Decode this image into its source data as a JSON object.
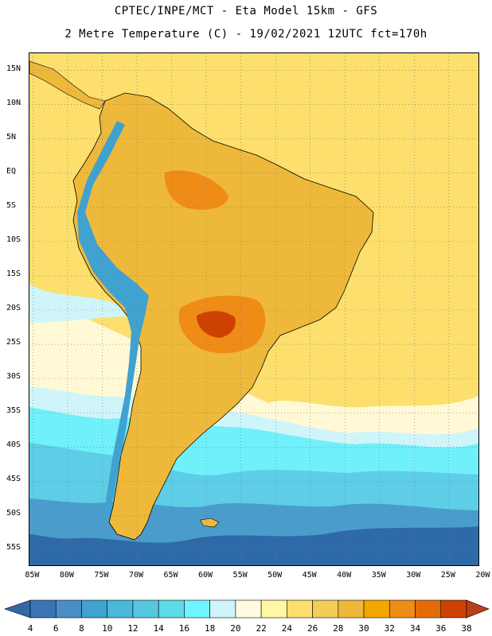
{
  "header": {
    "line1": "CPTEC/INPE/MCT -  Eta Model 15km - GFS",
    "line2": "2 Metre Temperature (C) - 19/02/2021 12UTC fct=170h"
  },
  "axes": {
    "lat_labels": [
      "15N",
      "10N",
      "5N",
      "EQ",
      "5S",
      "10S",
      "15S",
      "20S",
      "25S",
      "30S",
      "35S",
      "40S",
      "45S",
      "50S",
      "55S"
    ],
    "lat_values": [
      15,
      10,
      5,
      0,
      -5,
      -10,
      -15,
      -20,
      -25,
      -30,
      -35,
      -40,
      -45,
      -50,
      -55
    ],
    "lon_labels": [
      "85W",
      "80W",
      "75W",
      "70W",
      "65W",
      "60W",
      "55W",
      "50W",
      "45W",
      "40W",
      "35W",
      "30W",
      "25W",
      "20W"
    ],
    "lon_values": [
      -85,
      -80,
      -75,
      -70,
      -65,
      -60,
      -55,
      -50,
      -45,
      -40,
      -35,
      -30,
      -25,
      -20
    ],
    "lon_range": [
      -85.5,
      -20.5
    ],
    "lat_range": [
      -57.5,
      17.5
    ]
  },
  "legend": {
    "labels": [
      "4",
      "6",
      "8",
      "10",
      "12",
      "14",
      "16",
      "18",
      "20",
      "22",
      "24",
      "26",
      "28",
      "30",
      "32",
      "34",
      "36",
      "38"
    ],
    "colors": [
      "#3a74b4",
      "#4a8fc4",
      "#3fa2cf",
      "#49b8d9",
      "#55c8e0",
      "#5fdbe8",
      "#6ff5ff",
      "#cff5fb",
      "#fffbe0",
      "#fff7a3",
      "#fcdf6c",
      "#f3cd58",
      "#eeb93a",
      "#f3a600",
      "#ef8c16",
      "#e46c07",
      "#cd4203"
    ],
    "end_low": "#3168a8",
    "end_high": "#b9401a"
  },
  "zones": [
    {
      "name": "ocean-cold-south",
      "color": "#2e6aa8"
    },
    {
      "name": "ocean-cool",
      "color": "#4a9ccc"
    },
    {
      "name": "ocean-mild",
      "color": "#5ecde6"
    },
    {
      "name": "ocean-cyan",
      "color": "#6ff0fa"
    },
    {
      "name": "ocean-light",
      "color": "#cff5fb"
    },
    {
      "name": "ocean-pale",
      "color": "#fff9d6"
    },
    {
      "name": "ocean-warm",
      "color": "#fcdf6c"
    },
    {
      "name": "land-warm",
      "color": "#eeb93a"
    },
    {
      "name": "land-hot",
      "color": "#ef8c16"
    },
    {
      "name": "land-hottest",
      "color": "#cd4203"
    },
    {
      "name": "andes-cold",
      "color": "#3fa2cf"
    }
  ]
}
